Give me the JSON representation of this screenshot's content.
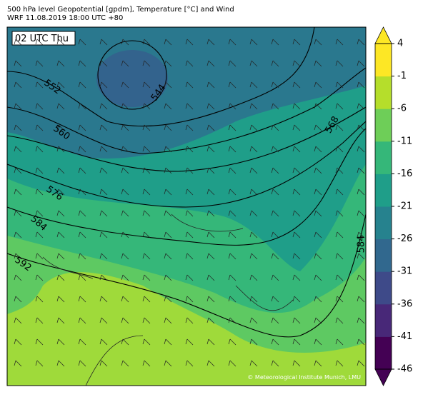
{
  "header": {
    "title": "500 hPa level Geopotential [gpdm], Temperature [°C] and Wind",
    "subtitle": "WRF 11.08.2019 18:00 UTC +80"
  },
  "map": {
    "time_label": "02 UTC Thu",
    "credit": "© Meteorological Institute Munich, LMU",
    "contour_labels": [
      "552",
      "544",
      "560",
      "568",
      "576",
      "584",
      "592",
      "584"
    ]
  },
  "colorbar": {
    "lim": [
      -46,
      4
    ],
    "ticks": [
      4,
      -1,
      -6,
      -11,
      -16,
      -21,
      -26,
      -31,
      -36,
      -41,
      -46
    ],
    "colors": [
      "#440154",
      "#482878",
      "#3e4a89",
      "#31688e",
      "#26828e",
      "#1f9e89",
      "#35b779",
      "#6ece58",
      "#b5de2b",
      "#fde725"
    ],
    "under": "#440154",
    "over": "#fde725"
  }
}
